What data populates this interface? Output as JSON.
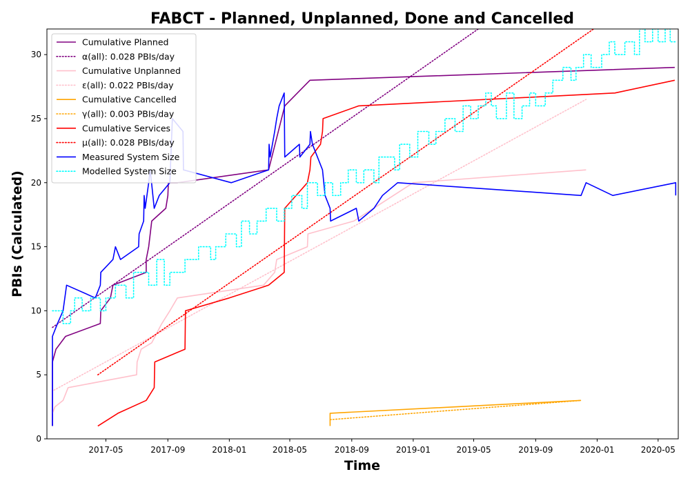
{
  "chart_data": {
    "type": "line",
    "title": "FABCT - Planned, Unplanned, Done  and Cancelled",
    "xlabel": "Time",
    "ylabel": "PBIs (Calculated)",
    "xlim": [
      "2017-01-04",
      "2020-06-10"
    ],
    "ylim": [
      0,
      32
    ],
    "x_ticks": [
      "2017-05",
      "2017-09",
      "2018-01",
      "2018-05",
      "2018-09",
      "2019-01",
      "2019-05",
      "2019-09",
      "2020-01",
      "2020-05"
    ],
    "x_tick_dates": [
      "2017-05-01",
      "2017-09-01",
      "2018-01-01",
      "2018-05-01",
      "2018-09-01",
      "2019-01-01",
      "2019-05-01",
      "2019-09-01",
      "2020-01-01",
      "2020-05-01"
    ],
    "y_ticks": [
      0,
      5,
      10,
      15,
      20,
      25,
      30
    ],
    "grid": false,
    "legend_position": "top-left",
    "series": [
      {
        "name": "Cumulative Planned",
        "color": "#800080",
        "style": "solid",
        "points": [
          [
            "2017-01-15",
            1
          ],
          [
            "2017-01-15",
            6
          ],
          [
            "2017-01-22",
            7
          ],
          [
            "2017-02-10",
            8
          ],
          [
            "2017-04-20",
            9
          ],
          [
            "2017-04-21",
            10
          ],
          [
            "2017-05-10",
            11
          ],
          [
            "2017-05-15",
            12
          ],
          [
            "2017-07-20",
            13
          ],
          [
            "2017-07-20",
            14
          ],
          [
            "2017-07-25",
            15
          ],
          [
            "2017-07-28",
            16
          ],
          [
            "2017-07-31",
            17
          ],
          [
            "2017-08-28",
            18
          ],
          [
            "2017-09-01",
            19
          ],
          [
            "2017-09-02",
            20
          ],
          [
            "2017-09-20",
            20
          ],
          [
            "2018-03-20",
            21
          ],
          [
            "2018-04-21",
            26
          ],
          [
            "2018-06-10",
            28
          ],
          [
            "2020-06-03",
            29
          ]
        ]
      },
      {
        "name": "α(all): 0.028 PBIs/day",
        "color": "#800080",
        "style": "dotted",
        "points": [
          [
            "2017-01-15",
            8.7
          ],
          [
            "2019-05-10",
            32
          ]
        ]
      },
      {
        "name": "Cumulative Unplanned",
        "color": "#ffc0cb",
        "style": "solid",
        "points": [
          [
            "2017-01-15",
            2
          ],
          [
            "2017-01-20",
            2.5
          ],
          [
            "2017-02-05",
            3
          ],
          [
            "2017-02-15",
            4
          ],
          [
            "2017-07-01",
            5
          ],
          [
            "2017-07-02",
            6
          ],
          [
            "2017-07-10",
            7
          ],
          [
            "2017-07-31",
            7.5
          ],
          [
            "2017-08-20",
            9
          ],
          [
            "2017-09-05",
            10
          ],
          [
            "2017-09-20",
            11
          ],
          [
            "2018-03-10",
            12
          ],
          [
            "2018-04-01",
            13
          ],
          [
            "2018-04-05",
            14
          ],
          [
            "2018-06-05",
            15
          ],
          [
            "2018-06-06",
            16
          ],
          [
            "2018-09-05",
            17
          ],
          [
            "2019-01-01",
            20
          ],
          [
            "2019-12-10",
            21
          ]
        ]
      },
      {
        "name": "ε(all): 0.022 PBIs/day",
        "color": "#ffc0cb",
        "style": "dotted",
        "points": [
          [
            "2017-01-18",
            3.8
          ],
          [
            "2019-12-10",
            26.5
          ]
        ]
      },
      {
        "name": "Cumulative Cancelled",
        "color": "#ffa500",
        "style": "solid",
        "points": [
          [
            "2018-07-20",
            1
          ],
          [
            "2018-07-20",
            2
          ],
          [
            "2019-11-30",
            3
          ]
        ]
      },
      {
        "name": "γ(all): 0.003 PBIs/day",
        "color": "#ffa500",
        "style": "dotted",
        "points": [
          [
            "2018-07-20",
            1.5
          ],
          [
            "2019-11-30",
            3
          ]
        ]
      },
      {
        "name": "Cumulative Services",
        "color": "#ff0000",
        "style": "solid",
        "points": [
          [
            "2017-04-15",
            1
          ],
          [
            "2017-05-25",
            2
          ],
          [
            "2017-07-20",
            3
          ],
          [
            "2017-08-05",
            4
          ],
          [
            "2017-08-06",
            6
          ],
          [
            "2017-10-05",
            7
          ],
          [
            "2017-10-06",
            10
          ],
          [
            "2018-01-01",
            11
          ],
          [
            "2018-03-20",
            12
          ],
          [
            "2018-04-20",
            13
          ],
          [
            "2018-04-21",
            18
          ],
          [
            "2018-06-05",
            20
          ],
          [
            "2018-06-10",
            21
          ],
          [
            "2018-06-12",
            22
          ],
          [
            "2018-07-01",
            23
          ],
          [
            "2018-07-05",
            24
          ],
          [
            "2018-07-06",
            25
          ],
          [
            "2018-09-15",
            26
          ],
          [
            "2020-02-05",
            27
          ],
          [
            "2020-06-03",
            28
          ]
        ]
      },
      {
        "name": "μ(all): 0.028 PBIs/day",
        "color": "#ff0000",
        "style": "dotted",
        "points": [
          [
            "2017-04-15",
            5
          ],
          [
            "2019-12-25",
            32
          ]
        ]
      },
      {
        "name": "Measured System Size",
        "color": "#0000ff",
        "style": "solid",
        "points": [
          [
            "2017-01-15",
            1
          ],
          [
            "2017-01-15",
            8
          ],
          [
            "2017-01-25",
            9
          ],
          [
            "2017-02-05",
            10
          ],
          [
            "2017-02-12",
            12
          ],
          [
            "2017-04-10",
            11
          ],
          [
            "2017-04-20",
            12
          ],
          [
            "2017-04-21",
            13
          ],
          [
            "2017-05-15",
            14
          ],
          [
            "2017-05-20",
            15
          ],
          [
            "2017-05-30",
            14
          ],
          [
            "2017-07-05",
            15
          ],
          [
            "2017-07-06",
            16
          ],
          [
            "2017-07-15",
            17
          ],
          [
            "2017-07-16",
            19
          ],
          [
            "2017-07-18",
            18
          ],
          [
            "2017-07-25",
            20
          ],
          [
            "2017-07-28",
            21
          ],
          [
            "2017-08-05",
            18
          ],
          [
            "2017-08-15",
            19
          ],
          [
            "2017-09-05",
            20
          ],
          [
            "2017-09-10",
            25
          ],
          [
            "2017-10-01",
            24
          ],
          [
            "2017-10-02",
            21
          ],
          [
            "2018-01-05",
            20
          ],
          [
            "2018-03-20",
            21
          ],
          [
            "2018-03-21",
            23
          ],
          [
            "2018-03-23",
            22
          ],
          [
            "2018-04-01",
            24
          ],
          [
            "2018-04-05",
            25
          ],
          [
            "2018-04-10",
            26
          ],
          [
            "2018-04-20",
            27
          ],
          [
            "2018-04-21",
            22
          ],
          [
            "2018-05-20",
            23
          ],
          [
            "2018-05-21",
            22
          ],
          [
            "2018-06-10",
            23
          ],
          [
            "2018-06-11",
            24
          ],
          [
            "2018-06-15",
            23
          ],
          [
            "2018-07-05",
            21
          ],
          [
            "2018-07-10",
            19
          ],
          [
            "2018-07-20",
            18
          ],
          [
            "2018-07-21",
            17
          ],
          [
            "2018-09-10",
            18
          ],
          [
            "2018-09-15",
            17
          ],
          [
            "2018-10-15",
            18
          ],
          [
            "2018-11-01",
            19
          ],
          [
            "2018-12-01",
            20
          ],
          [
            "2019-11-30",
            19
          ],
          [
            "2019-12-10",
            20
          ],
          [
            "2020-02-01",
            19
          ],
          [
            "2020-06-05",
            20
          ],
          [
            "2020-06-05",
            19
          ]
        ]
      },
      {
        "name": "Modelled System Size",
        "color": "#00ffff",
        "style": "dotted",
        "step": true,
        "points": [
          [
            "2017-01-15",
            10
          ],
          [
            "2017-02-05",
            9
          ],
          [
            "2017-02-20",
            10
          ],
          [
            "2017-02-28",
            11
          ],
          [
            "2017-03-15",
            10
          ],
          [
            "2017-04-01",
            11
          ],
          [
            "2017-04-20",
            10
          ],
          [
            "2017-05-01",
            11
          ],
          [
            "2017-05-20",
            12
          ],
          [
            "2017-06-10",
            11
          ],
          [
            "2017-06-25",
            13
          ],
          [
            "2017-07-25",
            12
          ],
          [
            "2017-08-10",
            14
          ],
          [
            "2017-08-25",
            12
          ],
          [
            "2017-09-05",
            13
          ],
          [
            "2017-09-25",
            13
          ],
          [
            "2017-10-05",
            14
          ],
          [
            "2017-11-01",
            15
          ],
          [
            "2017-11-25",
            14
          ],
          [
            "2017-12-05",
            15
          ],
          [
            "2017-12-25",
            16
          ],
          [
            "2018-01-15",
            15
          ],
          [
            "2018-01-25",
            17
          ],
          [
            "2018-02-10",
            16
          ],
          [
            "2018-02-25",
            17
          ],
          [
            "2018-03-15",
            18
          ],
          [
            "2018-04-05",
            17
          ],
          [
            "2018-04-20",
            18
          ],
          [
            "2018-05-05",
            19
          ],
          [
            "2018-05-25",
            18
          ],
          [
            "2018-06-05",
            20
          ],
          [
            "2018-06-25",
            19
          ],
          [
            "2018-07-10",
            20
          ],
          [
            "2018-07-25",
            19
          ],
          [
            "2018-08-10",
            20
          ],
          [
            "2018-08-25",
            21
          ],
          [
            "2018-09-10",
            20
          ],
          [
            "2018-09-25",
            21
          ],
          [
            "2018-10-15",
            20
          ],
          [
            "2018-10-25",
            22
          ],
          [
            "2018-11-25",
            21
          ],
          [
            "2018-12-05",
            23
          ],
          [
            "2018-12-25",
            22
          ],
          [
            "2019-01-10",
            24
          ],
          [
            "2019-02-01",
            23
          ],
          [
            "2019-02-15",
            24
          ],
          [
            "2019-03-05",
            25
          ],
          [
            "2019-03-25",
            24
          ],
          [
            "2019-04-10",
            26
          ],
          [
            "2019-04-25",
            25
          ],
          [
            "2019-05-10",
            26
          ],
          [
            "2019-05-25",
            27
          ],
          [
            "2019-06-05",
            26
          ],
          [
            "2019-06-15",
            25
          ],
          [
            "2019-07-05",
            27
          ],
          [
            "2019-07-20",
            25
          ],
          [
            "2019-08-05",
            26
          ],
          [
            "2019-08-20",
            27
          ],
          [
            "2019-09-01",
            26
          ],
          [
            "2019-09-20",
            27
          ],
          [
            "2019-10-05",
            28
          ],
          [
            "2019-10-25",
            29
          ],
          [
            "2019-11-10",
            28
          ],
          [
            "2019-11-20",
            29
          ],
          [
            "2019-12-05",
            30
          ],
          [
            "2019-12-20",
            29
          ],
          [
            "2020-01-10",
            30
          ],
          [
            "2020-01-25",
            31
          ],
          [
            "2020-02-05",
            30
          ],
          [
            "2020-02-25",
            31
          ],
          [
            "2020-03-15",
            30
          ],
          [
            "2020-03-25",
            32
          ],
          [
            "2020-04-05",
            31
          ],
          [
            "2020-04-20",
            32
          ],
          [
            "2020-05-01",
            31
          ],
          [
            "2020-05-15",
            32
          ],
          [
            "2020-05-25",
            31
          ],
          [
            "2020-06-05",
            31
          ]
        ]
      }
    ]
  }
}
